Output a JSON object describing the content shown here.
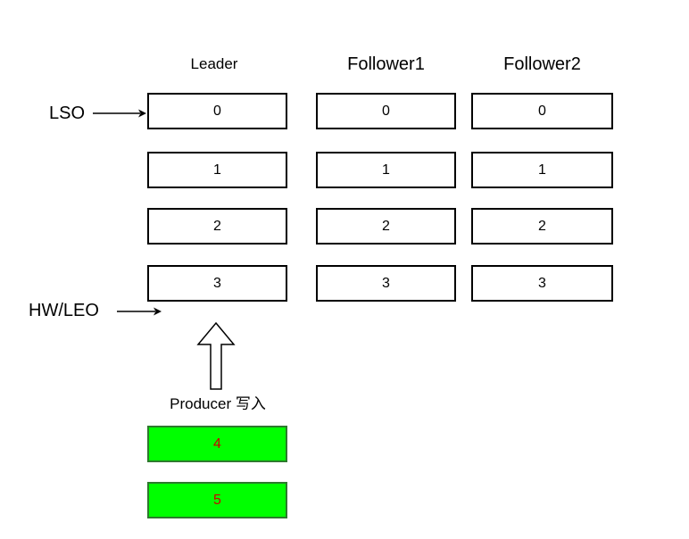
{
  "columns": [
    {
      "title": "Leader",
      "cells": [
        "0",
        "1",
        "2",
        "3"
      ]
    },
    {
      "title": "Follower1",
      "cells": [
        "0",
        "1",
        "2",
        "3"
      ]
    },
    {
      "title": "Follower2",
      "cells": [
        "0",
        "1",
        "2",
        "3"
      ]
    }
  ],
  "pointers": {
    "lso": "LSO",
    "hw_leo": "HW/LEO"
  },
  "producer": {
    "label": "Producer 写入",
    "new_messages": [
      "4",
      "5"
    ]
  },
  "colors": {
    "new_message_fill": "#00ff00",
    "new_message_text": "#cc0000",
    "border": "#000000"
  }
}
